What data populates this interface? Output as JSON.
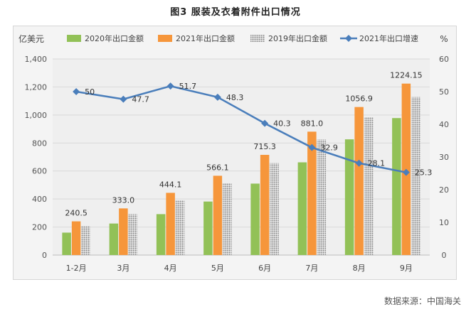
{
  "figure": {
    "title": "图3  服装及衣着附件出口情况",
    "source": "数据来源：中国海关"
  },
  "colors": {
    "s2020": "#92c157",
    "s2021": "#f6963b",
    "s2019": "#a9a9a9",
    "growth": "#4a7ebb"
  },
  "chart_data": {
    "type": "bar",
    "categories": [
      "1-2月",
      "3月",
      "4月",
      "5月",
      "6月",
      "7月",
      "8月",
      "9月"
    ],
    "y_left_label": "亿美元",
    "y_right_label": "%",
    "ylim_left": [
      0,
      1400
    ],
    "ylim_right": [
      0,
      60
    ],
    "y_left_ticks": [
      "0",
      "200",
      "400",
      "600",
      "800",
      "1,000",
      "1,200",
      "1,400"
    ],
    "y_right_ticks": [
      "0",
      "10",
      "20",
      "30",
      "40",
      "50",
      "60"
    ],
    "legend_position": "top",
    "series": [
      {
        "name": "2020年出口金额",
        "kind": "bar",
        "color": "#92c157",
        "values": [
          160,
          225,
          292,
          382,
          510,
          662,
          826,
          978
        ]
      },
      {
        "name": "2021年出口金额",
        "kind": "bar",
        "color": "#f6963b",
        "values": [
          240.5,
          333.0,
          444.1,
          566.1,
          715.3,
          881.0,
          1056.9,
          1224.15
        ],
        "labels": [
          "240.5",
          "333.0",
          "444.1",
          "566.1",
          "715.3",
          "881.0",
          "1056.9",
          "1224.15"
        ]
      },
      {
        "name": "2019年出口金额",
        "kind": "bar",
        "color": "#a9a9a9",
        "pattern": "dotted",
        "values": [
          205,
          292,
          388,
          512,
          656,
          824,
          982,
          1128
        ]
      },
      {
        "name": "2021年出口增速",
        "kind": "line",
        "axis": "right",
        "color": "#4a7ebb",
        "values": [
          50,
          47.7,
          51.7,
          48.3,
          40.3,
          32.9,
          28.1,
          25.3
        ],
        "labels": [
          "50",
          "47.7",
          "51.7",
          "48.3",
          "40.3",
          "32.9",
          "28.1",
          "25.3"
        ]
      }
    ]
  }
}
